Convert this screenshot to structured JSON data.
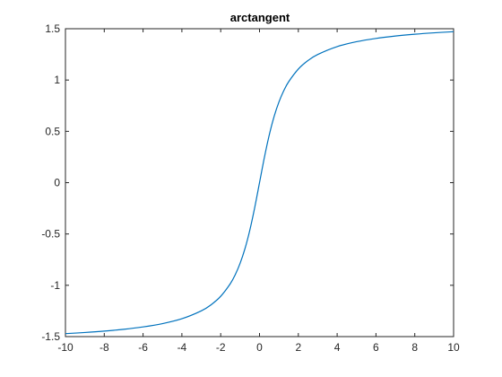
{
  "chart_data": {
    "type": "line",
    "title": "arctangent",
    "xlabel": "",
    "ylabel": "",
    "xlim": [
      -10,
      10
    ],
    "ylim": [
      -1.5,
      1.5
    ],
    "x_ticks": [
      -10,
      -8,
      -6,
      -4,
      -2,
      0,
      2,
      4,
      6,
      8,
      10
    ],
    "x_tick_labels": [
      "-10",
      "-8",
      "-6",
      "-4",
      "-2",
      "0",
      "2",
      "4",
      "6",
      "8",
      "10"
    ],
    "y_ticks": [
      1.5,
      1,
      0.5,
      0,
      -0.5,
      -1,
      -1.5
    ],
    "y_tick_labels": [
      "1.5",
      "1",
      "0.5",
      "0",
      "-0.5",
      "-1",
      "-1.5"
    ],
    "grid": false,
    "series": [
      {
        "color": "#0072BD",
        "x": [
          -10,
          -9,
          -8,
          -7,
          -6,
          -5,
          -4,
          -3,
          -2.5,
          -2,
          -1.5,
          -1.25,
          -1,
          -0.75,
          -0.5,
          -0.25,
          0,
          0.25,
          0.5,
          0.75,
          1,
          1.25,
          1.5,
          2,
          2.5,
          3,
          4,
          5,
          6,
          7,
          8,
          9,
          10
        ],
        "values": [
          -1.4711,
          -1.4601,
          -1.4464,
          -1.4289,
          -1.4056,
          -1.3734,
          -1.3258,
          -1.249,
          -1.1903,
          -1.1071,
          -0.9828,
          -0.8961,
          -0.7854,
          -0.6435,
          -0.4636,
          -0.245,
          0,
          0.245,
          0.4636,
          0.6435,
          0.7854,
          0.8961,
          0.9828,
          1.1071,
          1.1903,
          1.249,
          1.3258,
          1.3734,
          1.4056,
          1.4289,
          1.4464,
          1.4601,
          1.4711
        ]
      }
    ]
  }
}
